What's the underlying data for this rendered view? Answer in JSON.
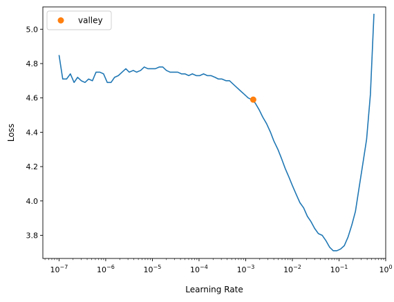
{
  "chart_data": {
    "type": "line",
    "xlabel": "Learning Rate",
    "ylabel": "Loss",
    "xscale": "log",
    "xlim": [
      4.5e-08,
      1.0
    ],
    "ylim": [
      3.665,
      5.13
    ],
    "grid": false,
    "legend": {
      "placement": "top-left",
      "entries": [
        "valley"
      ]
    },
    "x_ticks": [
      {
        "value": 1e-07,
        "label": "10",
        "exp": "−7"
      },
      {
        "value": 1e-06,
        "label": "10",
        "exp": "−6"
      },
      {
        "value": 1e-05,
        "label": "10",
        "exp": "−5"
      },
      {
        "value": 0.0001,
        "label": "10",
        "exp": "−4"
      },
      {
        "value": 0.001,
        "label": "10",
        "exp": "−3"
      },
      {
        "value": 0.01,
        "label": "10",
        "exp": "−2"
      },
      {
        "value": 0.1,
        "label": "10",
        "exp": "−1"
      },
      {
        "value": 1,
        "label": "10",
        "exp": "0"
      }
    ],
    "y_ticks": [
      {
        "value": 3.8,
        "label": "3.8"
      },
      {
        "value": 4.0,
        "label": "4.0"
      },
      {
        "value": 4.2,
        "label": "4.2"
      },
      {
        "value": 4.4,
        "label": "4.4"
      },
      {
        "value": 4.6,
        "label": "4.6"
      },
      {
        "value": 4.8,
        "label": "4.8"
      },
      {
        "value": 5.0,
        "label": "5.0"
      }
    ],
    "series": [
      {
        "color": "#1f77b4",
        "points": [
          [
            1e-07,
            4.85
          ],
          [
            1.2e-07,
            4.71
          ],
          [
            1.45e-07,
            4.71
          ],
          [
            1.75e-07,
            4.74
          ],
          [
            2.1e-07,
            4.69
          ],
          [
            2.5e-07,
            4.72
          ],
          [
            3e-07,
            4.7
          ],
          [
            3.6e-07,
            4.69
          ],
          [
            4.3e-07,
            4.71
          ],
          [
            5.2e-07,
            4.7
          ],
          [
            6.2e-07,
            4.75
          ],
          [
            7.5e-07,
            4.75
          ],
          [
            9e-07,
            4.74
          ],
          [
            1.08e-06,
            4.69
          ],
          [
            1.3e-06,
            4.69
          ],
          [
            1.55e-06,
            4.72
          ],
          [
            1.87e-06,
            4.73
          ],
          [
            2.24e-06,
            4.75
          ],
          [
            2.7e-06,
            4.77
          ],
          [
            3.2e-06,
            4.75
          ],
          [
            3.9e-06,
            4.76
          ],
          [
            4.6e-06,
            4.75
          ],
          [
            5.6e-06,
            4.76
          ],
          [
            6.7e-06,
            4.78
          ],
          [
            8e-06,
            4.77
          ],
          [
            9.7e-06,
            4.77
          ],
          [
            1.16e-05,
            4.77
          ],
          [
            1.4e-05,
            4.78
          ],
          [
            1.67e-05,
            4.78
          ],
          [
            2e-05,
            4.76
          ],
          [
            2.4e-05,
            4.75
          ],
          [
            2.9e-05,
            4.75
          ],
          [
            3.5e-05,
            4.75
          ],
          [
            4.2e-05,
            4.74
          ],
          [
            5e-05,
            4.74
          ],
          [
            6e-05,
            4.73
          ],
          [
            7.2e-05,
            4.74
          ],
          [
            8.7e-05,
            4.73
          ],
          [
            0.000104,
            4.73
          ],
          [
            0.000125,
            4.74
          ],
          [
            0.00015,
            4.73
          ],
          [
            0.00018,
            4.73
          ],
          [
            0.00022,
            4.72
          ],
          [
            0.00026,
            4.71
          ],
          [
            0.00031,
            4.71
          ],
          [
            0.00038,
            4.7
          ],
          [
            0.00045,
            4.7
          ],
          [
            0.00054,
            4.68
          ],
          [
            0.00065,
            4.66
          ],
          [
            0.00078,
            4.64
          ],
          [
            0.00094,
            4.62
          ],
          [
            0.00113,
            4.6
          ],
          [
            0.00135,
            4.59
          ],
          [
            0.0016,
            4.57
          ],
          [
            0.00195,
            4.53
          ],
          [
            0.0023,
            4.49
          ],
          [
            0.0028,
            4.45
          ],
          [
            0.0034,
            4.4
          ],
          [
            0.004,
            4.35
          ],
          [
            0.0049,
            4.3
          ],
          [
            0.0058,
            4.25
          ],
          [
            0.007,
            4.19
          ],
          [
            0.0084,
            4.14
          ],
          [
            0.01,
            4.09
          ],
          [
            0.012,
            4.04
          ],
          [
            0.0145,
            3.99
          ],
          [
            0.0174,
            3.96
          ],
          [
            0.021,
            3.91
          ],
          [
            0.025,
            3.88
          ],
          [
            0.03,
            3.84
          ],
          [
            0.036,
            3.81
          ],
          [
            0.0435,
            3.8
          ],
          [
            0.052,
            3.77
          ],
          [
            0.063,
            3.73
          ],
          [
            0.075,
            3.71
          ],
          [
            0.09,
            3.71
          ],
          [
            0.108,
            3.72
          ],
          [
            0.13,
            3.74
          ],
          [
            0.156,
            3.79
          ],
          [
            0.188,
            3.86
          ],
          [
            0.225,
            3.94
          ],
          [
            0.27,
            4.08
          ],
          [
            0.325,
            4.22
          ],
          [
            0.39,
            4.36
          ],
          [
            0.47,
            4.62
          ],
          [
            0.56,
            5.09
          ]
        ]
      }
    ],
    "markers": [
      {
        "name": "valley",
        "x": 0.00145,
        "y": 4.59,
        "color": "#ff7f0e"
      }
    ]
  }
}
